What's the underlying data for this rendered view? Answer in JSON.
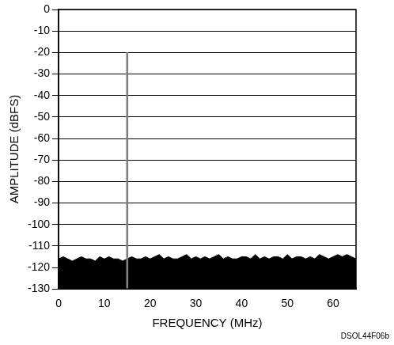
{
  "chart_data": {
    "type": "line",
    "x_label": "FREQUENCY (MHz)",
    "y_label": "AMPLITUDE (dBFS)",
    "annotation": "DSOL44F06b",
    "series": [
      {
        "type": "area",
        "color": "#000000",
        "x": [
          0,
          1,
          2,
          3,
          4,
          5,
          6,
          7,
          8,
          9,
          10,
          11,
          12,
          13,
          14,
          15,
          16,
          17,
          18,
          19,
          20,
          21,
          22,
          23,
          24,
          25,
          26,
          27,
          28,
          29,
          30,
          31,
          32,
          33,
          34,
          35,
          36,
          37,
          38,
          39,
          40,
          41,
          42,
          43,
          44,
          45,
          46,
          47,
          48,
          49,
          50,
          51,
          52,
          53,
          54,
          55,
          56,
          57,
          58,
          59,
          60,
          61,
          62,
          63,
          64,
          65
        ],
        "values": [
          -116,
          -115,
          -116,
          -117,
          -116,
          -115,
          -116,
          -116,
          -117,
          -115,
          -116,
          -115,
          -116,
          -116,
          -117,
          -116,
          -115,
          -116,
          -116,
          -115,
          -116,
          -115,
          -114,
          -116,
          -115,
          -116,
          -116,
          -115,
          -114,
          -116,
          -115,
          -116,
          -115,
          -116,
          -115,
          -114,
          -116,
          -115,
          -116,
          -116,
          -115,
          -115,
          -116,
          -114,
          -116,
          -115,
          -116,
          -115,
          -115,
          -116,
          -114,
          -116,
          -115,
          -115,
          -116,
          -115,
          -116,
          -114,
          -115,
          -116,
          -115,
          -114,
          -115,
          -114,
          -115,
          -116
        ]
      },
      {
        "type": "bar",
        "color": "#808080",
        "x": [
          15
        ],
        "values": [
          -20
        ]
      }
    ],
    "xlim": [
      0,
      65
    ],
    "xticks": [
      0,
      10,
      20,
      30,
      40,
      50,
      60
    ],
    "ylim": [
      -130,
      0
    ],
    "yticks": [
      -130,
      -120,
      -110,
      -100,
      -90,
      -80,
      -70,
      -60,
      -50,
      -40,
      -30,
      -20,
      -10,
      0
    ],
    "grid": "y"
  }
}
